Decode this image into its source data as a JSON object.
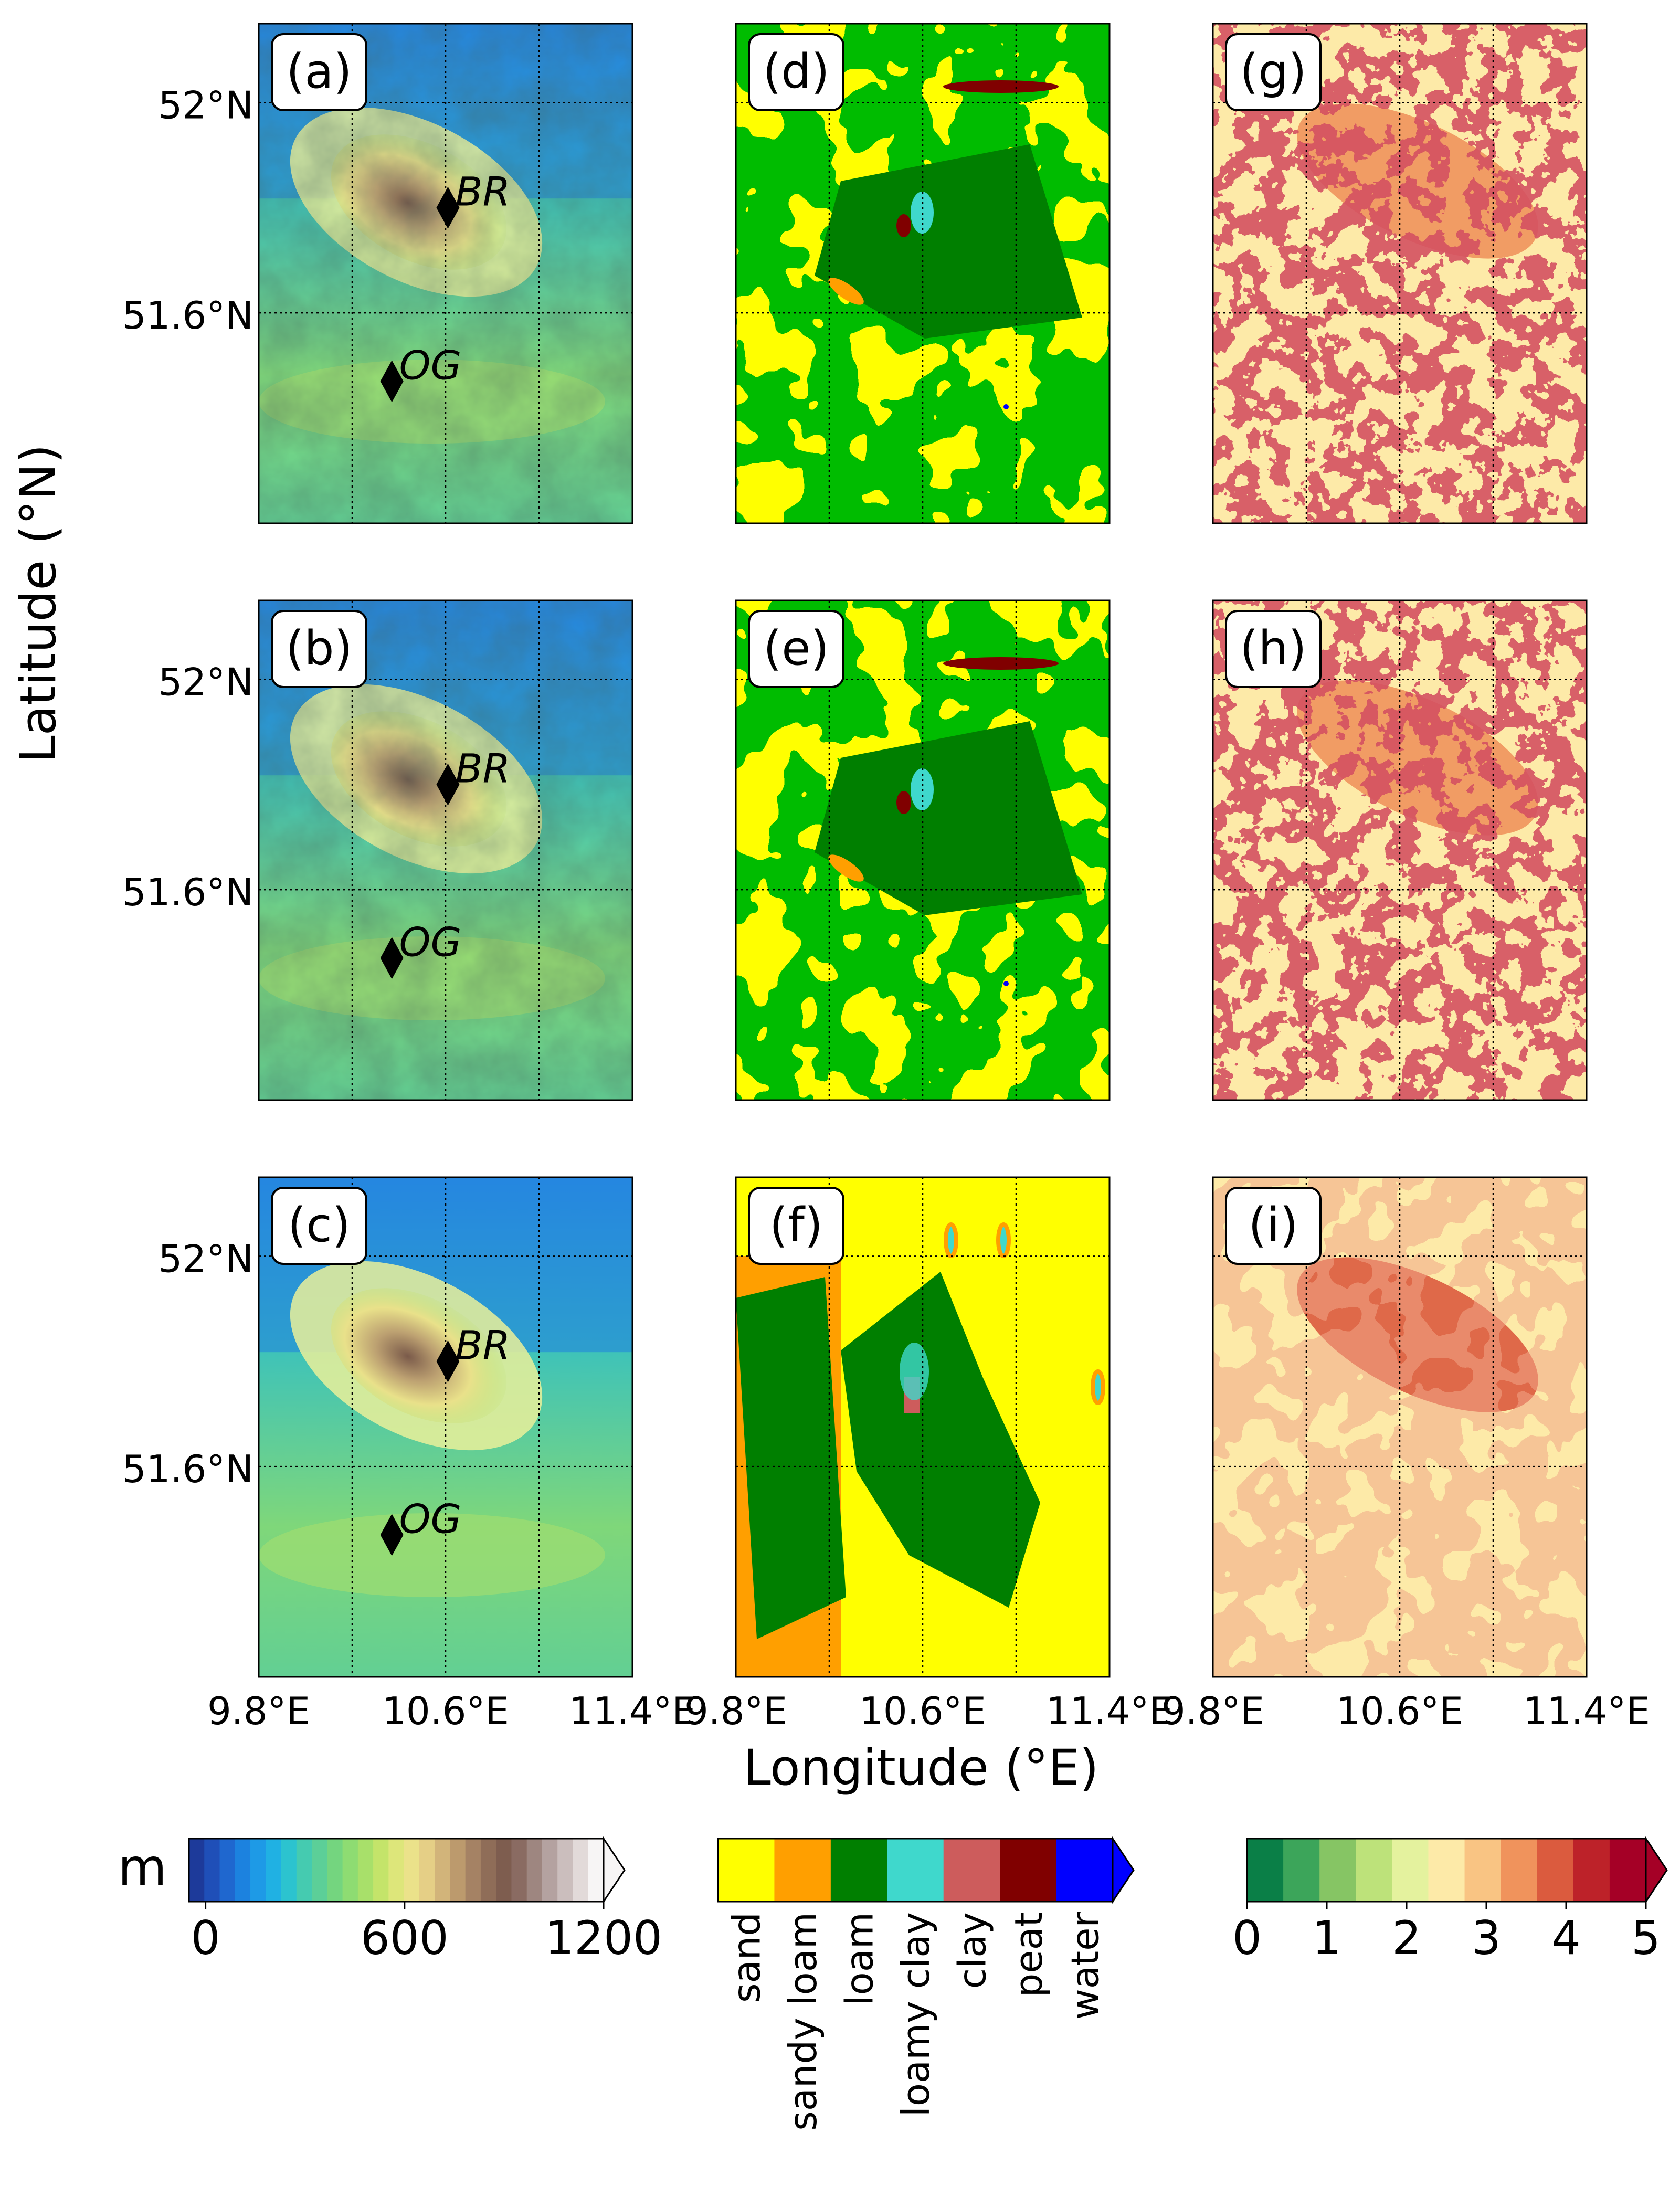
{
  "figure": {
    "ylabel": "Latitude (°N)",
    "xlabel": "Longitude (°E)",
    "lat_ticks": [
      "52°N",
      "51.6°N"
    ],
    "lon_ticks": [
      "9.8°E",
      "10.6°E",
      "11.4°E"
    ],
    "sites": {
      "br": "BR",
      "og": "OG"
    }
  },
  "chart_data": {
    "type": "map",
    "grid": true,
    "extent": {
      "lon": [
        9.8,
        11.4
      ],
      "lat": [
        51.2,
        52.15
      ]
    },
    "lat_tick_values": [
      52.0,
      51.6
    ],
    "lon_tick_values": [
      9.8,
      10.6,
      11.4
    ],
    "panels": [
      {
        "label": "(a)",
        "field": "elevation",
        "colorbar": "elevation",
        "row": 1,
        "col": 1
      },
      {
        "label": "(b)",
        "field": "elevation",
        "colorbar": "elevation",
        "row": 2,
        "col": 1
      },
      {
        "label": "(c)",
        "field": "elevation",
        "colorbar": "elevation",
        "row": 3,
        "col": 1
      },
      {
        "label": "(d)",
        "field": "soil texture",
        "colorbar": "soil",
        "row": 1,
        "col": 2
      },
      {
        "label": "(e)",
        "field": "soil texture",
        "colorbar": "soil",
        "row": 2,
        "col": 2
      },
      {
        "label": "(f)",
        "field": "soil texture",
        "colorbar": "soil",
        "row": 3,
        "col": 2
      },
      {
        "label": "(g)",
        "field": "index 0-5",
        "colorbar": "index",
        "row": 1,
        "col": 3
      },
      {
        "label": "(h)",
        "field": "index 0-5",
        "colorbar": "index",
        "row": 2,
        "col": 3
      },
      {
        "label": "(i)",
        "field": "index 0-5",
        "colorbar": "index",
        "row": 3,
        "col": 3
      }
    ],
    "sites": [
      {
        "name": "BR",
        "lon": 10.61,
        "lat": 51.8,
        "marker": "diamond"
      },
      {
        "name": "OG",
        "lon": 10.37,
        "lat": 51.47,
        "marker": "diamond"
      }
    ],
    "colorbars": {
      "elevation": {
        "unit": "m",
        "range": [
          -50,
          1200
        ],
        "extend": "max",
        "tick_values": [
          0,
          600,
          1200
        ],
        "tick_labels": [
          "0",
          "600",
          "1200"
        ],
        "colors": [
          "#1d3a9a",
          "#1f4fb8",
          "#1f67cf",
          "#1c82df",
          "#1e9ae6",
          "#20b1e3",
          "#2cc3cf",
          "#45cbb0",
          "#5ccf98",
          "#74d57f",
          "#8edc72",
          "#a8e06a",
          "#c4e46a",
          "#dde67a",
          "#ebe28a",
          "#e5cf86",
          "#d2b47a",
          "#bc9a6d",
          "#a58264",
          "#8f6d58",
          "#7e5d4f",
          "#8a6b62",
          "#9e8680",
          "#b4a2a0",
          "#cbbebd",
          "#e2dad9",
          "#f7f5f5"
        ]
      },
      "soil": {
        "classes": [
          "sand",
          "sandy loam",
          "loam",
          "loamy clay",
          "clay",
          "peat",
          "water"
        ],
        "colors": [
          "#ffff00",
          "#ff9f00",
          "#007f00",
          "#3fd8cc",
          "#cd5c5c",
          "#800000",
          "#0000ff"
        ],
        "extend": "max"
      },
      "index": {
        "range": [
          0,
          5
        ],
        "extend": "max",
        "tick_values": [
          0,
          1,
          2,
          3,
          4,
          5
        ],
        "tick_labels": [
          "0",
          "1",
          "2",
          "3",
          "4",
          "5"
        ],
        "colors": [
          "#0a7f47",
          "#3ca55a",
          "#86c564",
          "#bde27a",
          "#e4f29e",
          "#fdeaa8",
          "#f9c483",
          "#f0935c",
          "#db5b3e",
          "#bd2229",
          "#a50026"
        ]
      }
    }
  }
}
